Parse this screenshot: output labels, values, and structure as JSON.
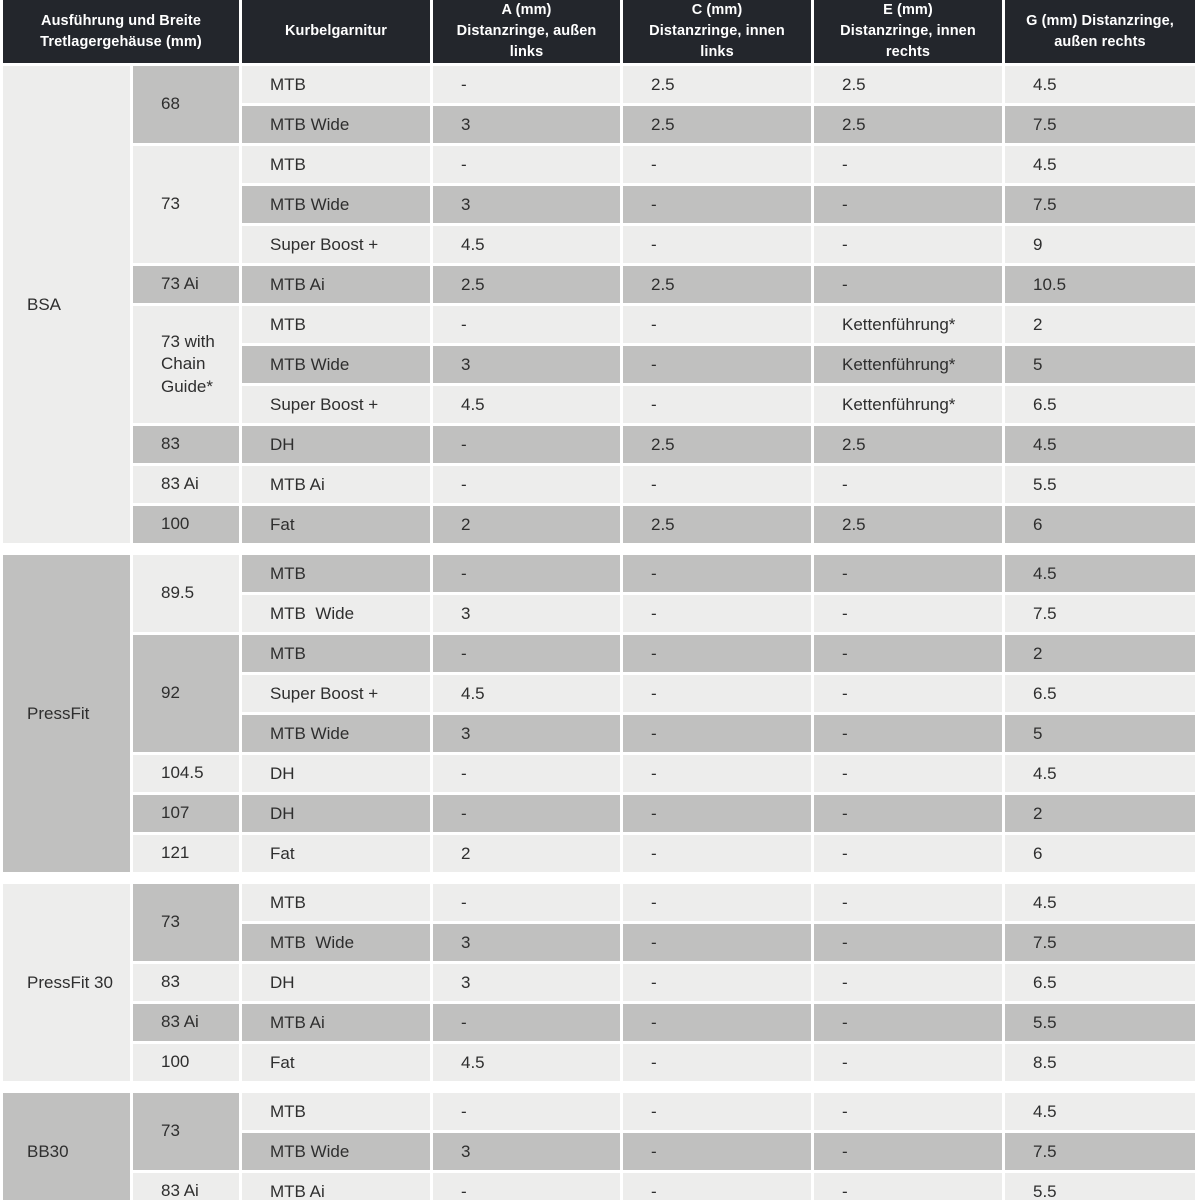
{
  "colors": {
    "header_bg": "#23262c",
    "header_text": "#ffffff",
    "row_light": "#ededec",
    "row_dark": "#c0c0bf",
    "body_text": "#2e2e2e",
    "background": "#ffffff"
  },
  "chart_data": {
    "type": "table",
    "columns": [
      "Ausführung und Breite\nTretlagergehäuse (mm)",
      "Kurbelgarnitur",
      "A (mm)\nDistanzringe, außen\nlinks",
      "C (mm)\nDistanzringe, innen\nlinks",
      "E (mm)\nDistanzringe, innen\nrechts",
      "G (mm) Distanzringe,\naußen rechts"
    ],
    "sections": [
      {
        "standard": "BSA",
        "shade": "light",
        "widths": [
          {
            "width": "68",
            "shade": "dark",
            "rows": [
              {
                "crank": "MTB",
                "a": "-",
                "c": "2.5",
                "e": "2.5",
                "g": "4.5",
                "shade": "light"
              },
              {
                "crank": "MTB Wide",
                "a": "3",
                "c": "2.5",
                "e": "2.5",
                "g": "7.5",
                "shade": "dark"
              }
            ]
          },
          {
            "width": "73",
            "shade": "light",
            "rows": [
              {
                "crank": "MTB",
                "a": "-",
                "c": "-",
                "e": "-",
                "g": "4.5",
                "shade": "light"
              },
              {
                "crank": "MTB Wide",
                "a": "3",
                "c": "-",
                "e": "-",
                "g": "7.5",
                "shade": "dark"
              },
              {
                "crank": "Super Boost +",
                "a": "4.5",
                "c": "-",
                "e": "-",
                "g": "9",
                "shade": "light"
              }
            ]
          },
          {
            "width": "73 Ai",
            "shade": "dark",
            "rows": [
              {
                "crank": "MTB Ai",
                "a": "2.5",
                "c": "2.5",
                "e": "-",
                "g": "10.5",
                "shade": "dark"
              }
            ]
          },
          {
            "width": "73 with Chain Guide*",
            "shade": "light",
            "rows": [
              {
                "crank": "MTB",
                "a": "-",
                "c": "-",
                "e": "Kettenführung*",
                "g": "2",
                "shade": "light"
              },
              {
                "crank": "MTB Wide",
                "a": "3",
                "c": "-",
                "e": "Kettenführung*",
                "g": "5",
                "shade": "dark"
              },
              {
                "crank": "Super Boost +",
                "a": "4.5",
                "c": "-",
                "e": "Kettenführung*",
                "g": "6.5",
                "shade": "light"
              }
            ]
          },
          {
            "width": "83",
            "shade": "dark",
            "rows": [
              {
                "crank": "DH",
                "a": "-",
                "c": "2.5",
                "e": "2.5",
                "g": "4.5",
                "shade": "dark"
              }
            ]
          },
          {
            "width": "83 Ai",
            "shade": "light",
            "rows": [
              {
                "crank": "MTB Ai",
                "a": "-",
                "c": "-",
                "e": "-",
                "g": "5.5",
                "shade": "light"
              }
            ]
          },
          {
            "width": "100",
            "shade": "dark",
            "rows": [
              {
                "crank": "Fat",
                "a": "2",
                "c": "2.5",
                "e": "2.5",
                "g": "6",
                "shade": "dark"
              }
            ]
          }
        ]
      },
      {
        "standard": "PressFit",
        "shade": "dark",
        "widths": [
          {
            "width": "89.5",
            "shade": "light",
            "rows": [
              {
                "crank": "MTB",
                "a": "-",
                "c": "-",
                "e": "-",
                "g": "4.5",
                "shade": "dark"
              },
              {
                "crank": "MTB  Wide",
                "a": "3",
                "c": "-",
                "e": "-",
                "g": "7.5",
                "shade": "light"
              }
            ]
          },
          {
            "width": "92",
            "shade": "dark",
            "rows": [
              {
                "crank": "MTB",
                "a": "-",
                "c": "-",
                "e": "-",
                "g": "2",
                "shade": "dark"
              },
              {
                "crank": "Super Boost +",
                "a": "4.5",
                "c": "-",
                "e": "-",
                "g": "6.5",
                "shade": "light"
              },
              {
                "crank": "MTB Wide",
                "a": "3",
                "c": "-",
                "e": "-",
                "g": "5",
                "shade": "dark"
              }
            ]
          },
          {
            "width": "104.5",
            "shade": "light",
            "rows": [
              {
                "crank": "DH",
                "a": "-",
                "c": "-",
                "e": "-",
                "g": "4.5",
                "shade": "light"
              }
            ]
          },
          {
            "width": "107",
            "shade": "dark",
            "rows": [
              {
                "crank": "DH",
                "a": "-",
                "c": "-",
                "e": "-",
                "g": "2",
                "shade": "dark"
              }
            ]
          },
          {
            "width": "121",
            "shade": "light",
            "rows": [
              {
                "crank": "Fat",
                "a": "2",
                "c": "-",
                "e": "-",
                "g": "6",
                "shade": "light"
              }
            ]
          }
        ]
      },
      {
        "standard": "PressFit 30",
        "shade": "light",
        "widths": [
          {
            "width": "73",
            "shade": "dark",
            "rows": [
              {
                "crank": "MTB",
                "a": "-",
                "c": "-",
                "e": "-",
                "g": "4.5",
                "shade": "light"
              },
              {
                "crank": "MTB  Wide",
                "a": "3",
                "c": "-",
                "e": "-",
                "g": "7.5",
                "shade": "dark"
              }
            ]
          },
          {
            "width": "83",
            "shade": "light",
            "rows": [
              {
                "crank": "DH",
                "a": "3",
                "c": "-",
                "e": "-",
                "g": "6.5",
                "shade": "light"
              }
            ]
          },
          {
            "width": "83 Ai",
            "shade": "dark",
            "rows": [
              {
                "crank": "MTB Ai",
                "a": "-",
                "c": "-",
                "e": "-",
                "g": "5.5",
                "shade": "dark"
              }
            ]
          },
          {
            "width": "100",
            "shade": "light",
            "rows": [
              {
                "crank": "Fat",
                "a": "4.5",
                "c": "-",
                "e": "-",
                "g": "8.5",
                "shade": "light"
              }
            ]
          }
        ]
      },
      {
        "standard": "BB30",
        "shade": "dark",
        "widths": [
          {
            "width": "73",
            "shade": "dark",
            "rows": [
              {
                "crank": "MTB",
                "a": "-",
                "c": "-",
                "e": "-",
                "g": "4.5",
                "shade": "light"
              },
              {
                "crank": "MTB Wide",
                "a": "3",
                "c": "-",
                "e": "-",
                "g": "7.5",
                "shade": "dark"
              }
            ]
          },
          {
            "width": "83 Ai",
            "shade": "light",
            "rows": [
              {
                "crank": "MTB Ai",
                "a": "-",
                "c": "-",
                "e": "-",
                "g": "5.5",
                "shade": "light"
              }
            ]
          }
        ]
      }
    ]
  }
}
